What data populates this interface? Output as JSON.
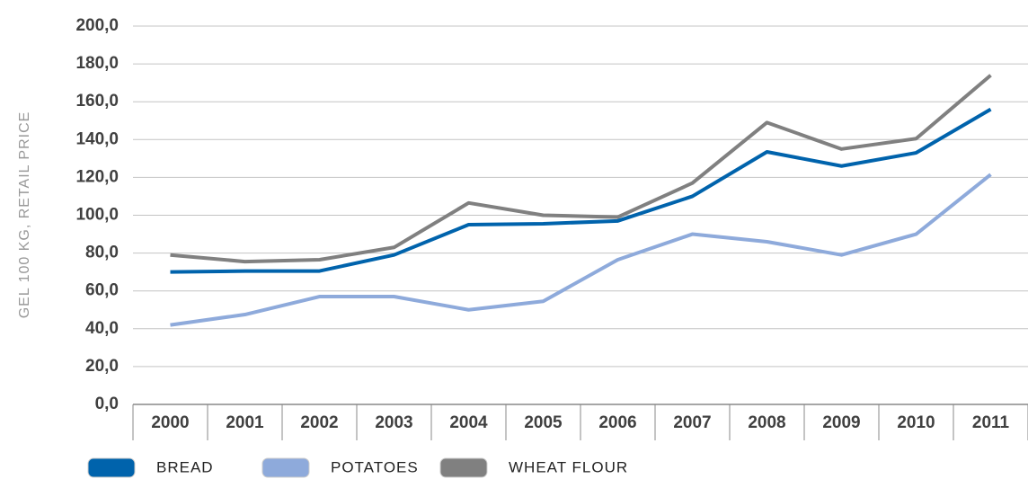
{
  "chart_data": {
    "type": "line",
    "y_label": "GEL 100 KG, RETAIL PRICE",
    "categories": [
      "2000",
      "2001",
      "2002",
      "2003",
      "2004",
      "2005",
      "2006",
      "2007",
      "2008",
      "2009",
      "2010",
      "2011"
    ],
    "series": [
      {
        "name": "BREAD",
        "color": "#0063ac",
        "values": [
          70,
          70.5,
          70.5,
          79,
          95,
          95.5,
          97,
          110,
          133.5,
          126,
          133,
          156
        ]
      },
      {
        "name": "POTATOES",
        "color": "#8eaadb",
        "values": [
          42,
          47.5,
          57,
          57,
          50,
          54.5,
          76.5,
          90,
          86,
          79,
          90,
          121.5
        ]
      },
      {
        "name": "WHEAT FLOUR",
        "color": "#808080",
        "values": [
          79,
          75.5,
          76.5,
          83,
          106.5,
          100,
          99,
          117,
          149,
          135,
          140.5,
          174
        ]
      }
    ],
    "ylim": [
      0,
      200
    ],
    "yticks": [
      {
        "value": 0,
        "label": "0,0"
      },
      {
        "value": 20,
        "label": "20,0"
      },
      {
        "value": 40,
        "label": "40,0"
      },
      {
        "value": 60,
        "label": "60,0"
      },
      {
        "value": 80,
        "label": "80,0"
      },
      {
        "value": 100,
        "label": "100,0"
      },
      {
        "value": 120,
        "label": "120,0"
      },
      {
        "value": 140,
        "label": "140,0"
      },
      {
        "value": 160,
        "label": "160,0"
      },
      {
        "value": 180,
        "label": "180,0"
      },
      {
        "value": 200,
        "label": "200,0"
      }
    ],
    "grid": true,
    "legend": "bottom"
  }
}
